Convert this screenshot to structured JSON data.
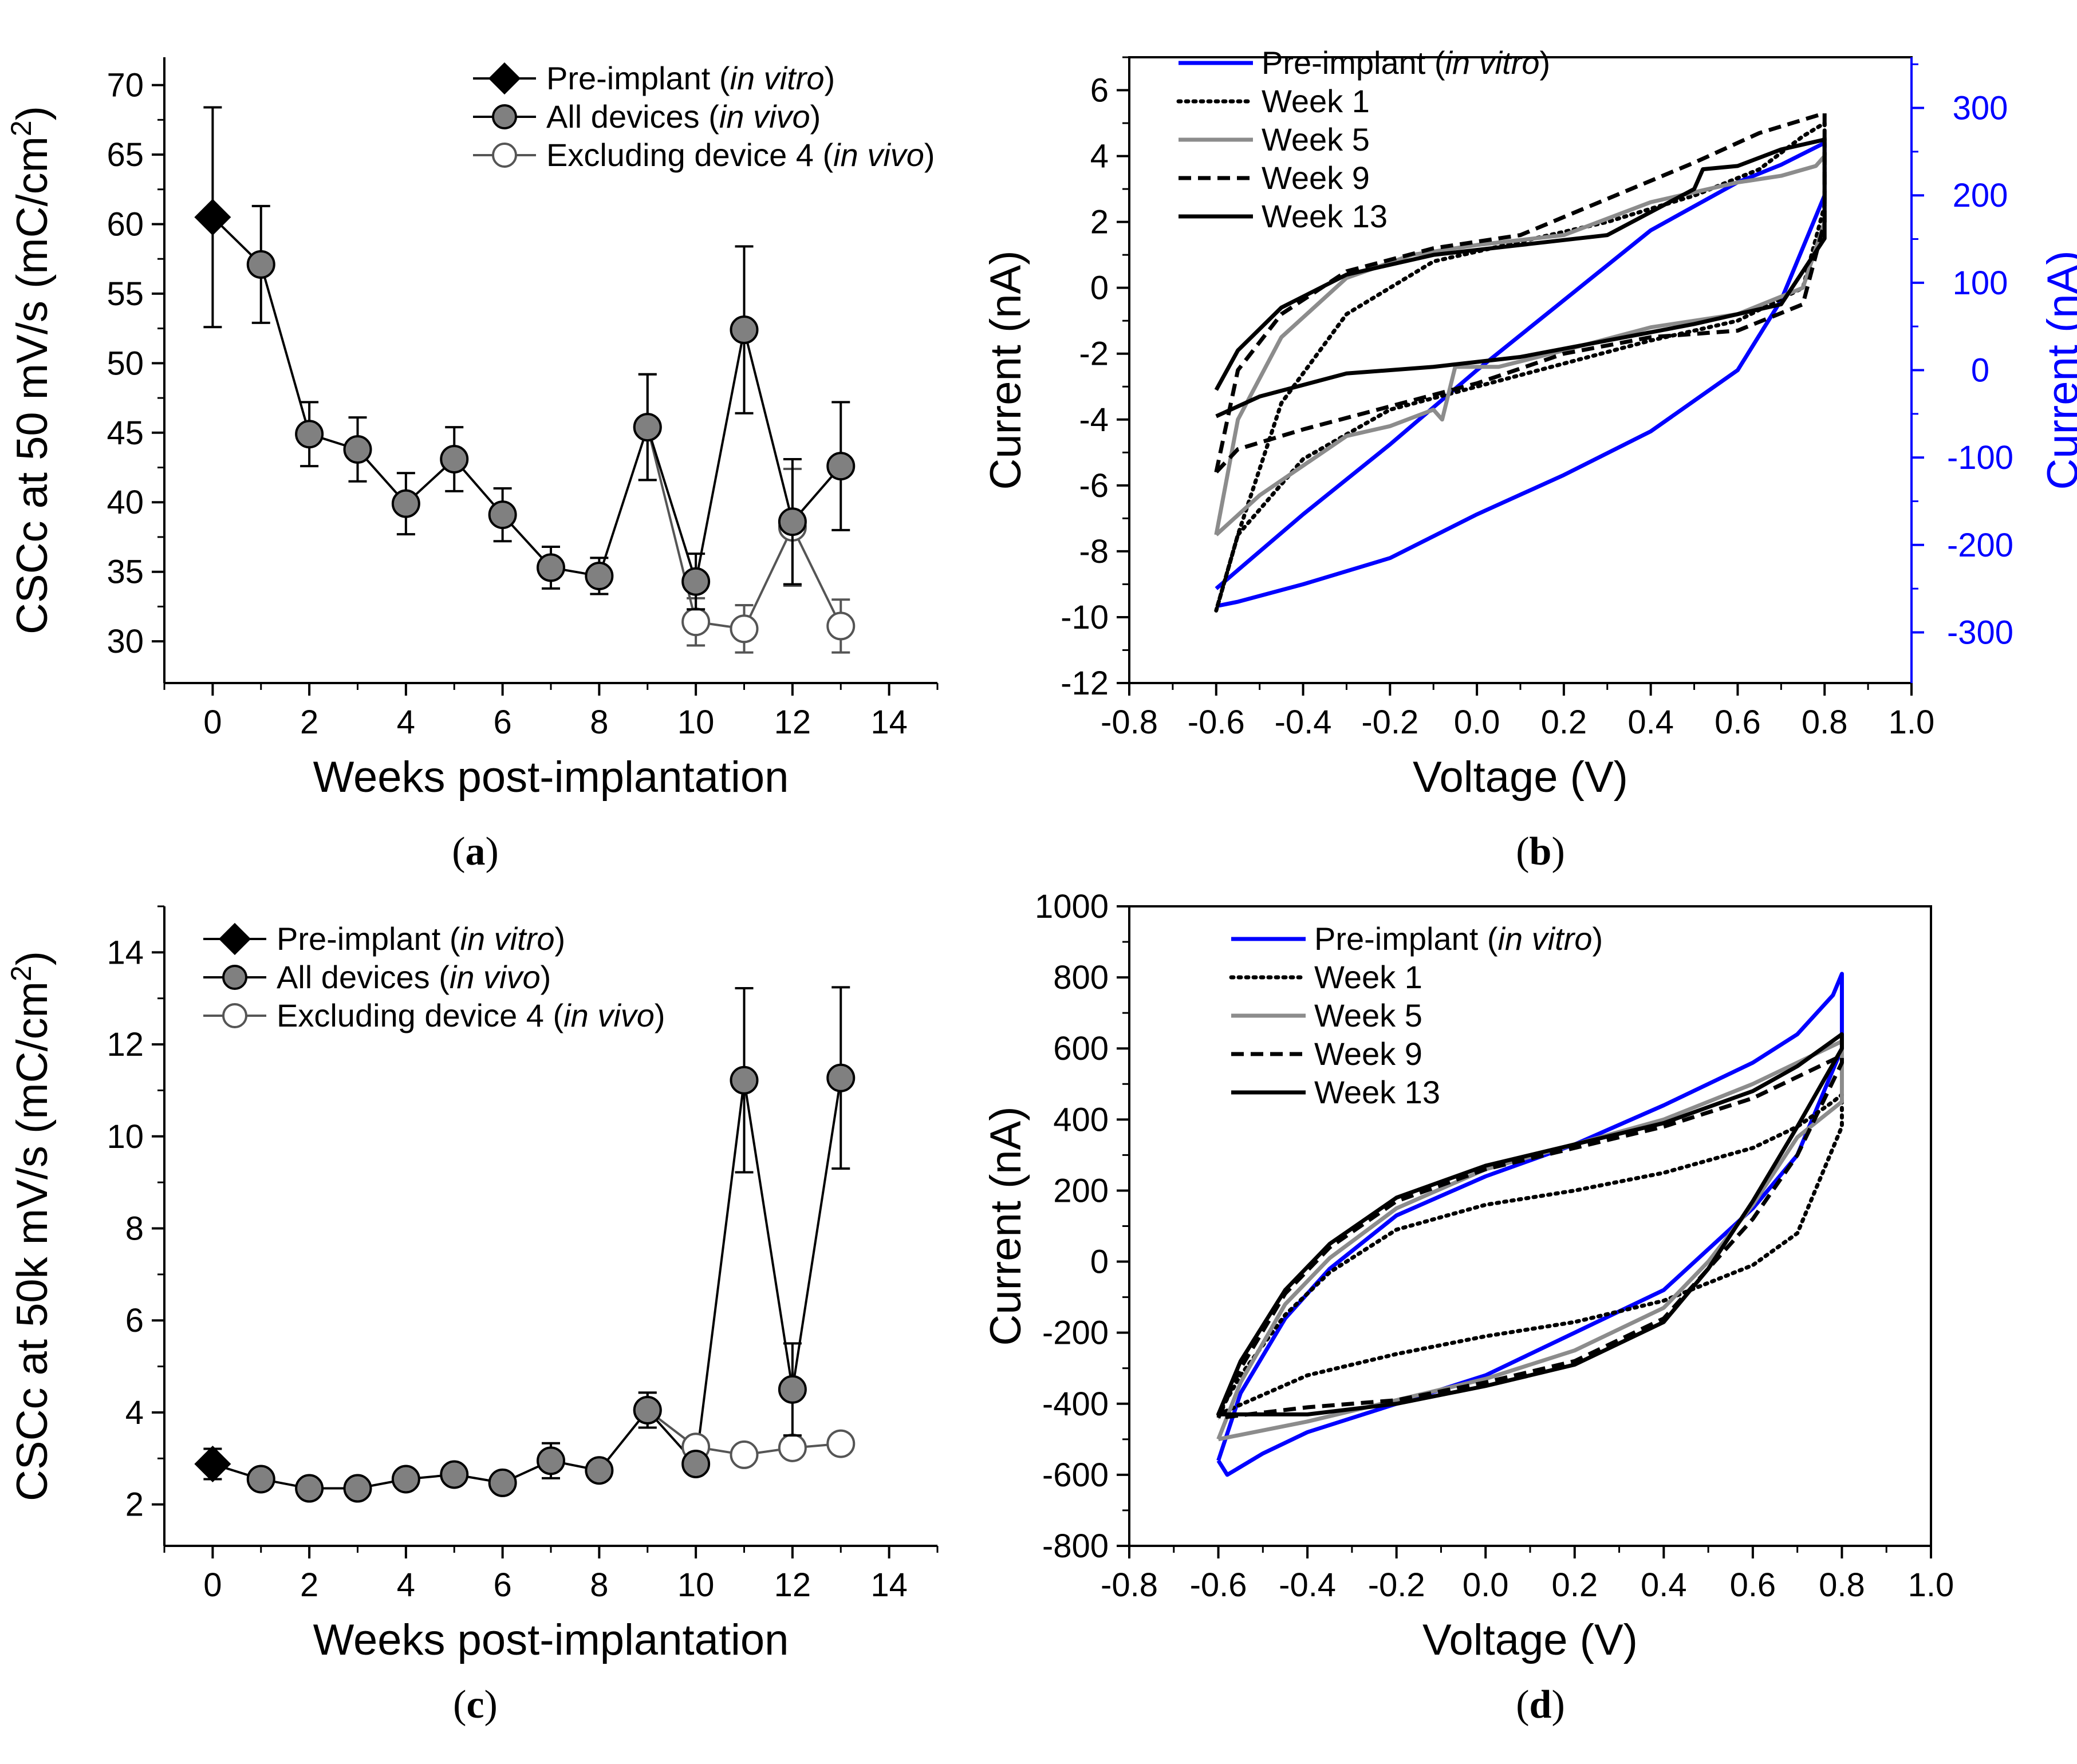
{
  "chart_data": [
    {
      "panel": "(a)",
      "type": "scatter",
      "xlabel": "Weeks post-implantation",
      "ylabel": "CSCc at 50 mV/s (mC/cm²)",
      "ylabel_base": "CSCc at 50 mV/s (mC/cm",
      "ylabel_sup": "2",
      "ylabel_end": ")",
      "xlim": [
        -1,
        15
      ],
      "ylim": [
        27,
        72
      ],
      "xticks": [
        0,
        2,
        4,
        6,
        8,
        10,
        12,
        14
      ],
      "yticks": [
        30,
        35,
        40,
        45,
        50,
        55,
        60,
        65,
        70
      ],
      "legend_position": "top-right",
      "series": [
        {
          "name": "Pre-implant",
          "name_qualifier": "(in vitro)",
          "marker": "diamond",
          "color": "#000000",
          "x": [
            0
          ],
          "y": [
            60.5
          ],
          "err": [
            7.9
          ]
        },
        {
          "name": "All devices",
          "name_qualifier": "(in vivo)",
          "marker": "circle-filled",
          "color": "#000000",
          "x": [
            1,
            2,
            3,
            4,
            5,
            6,
            7,
            8,
            9,
            10,
            11,
            12,
            13
          ],
          "y": [
            57.1,
            44.9,
            43.8,
            39.9,
            43.1,
            39.1,
            35.3,
            34.7,
            45.4,
            34.3,
            52.4,
            38.6,
            42.6
          ],
          "err": [
            4.2,
            2.3,
            2.3,
            2.2,
            2.3,
            1.9,
            1.5,
            1.3,
            3.8,
            2.0,
            6.0,
            4.5,
            4.6
          ]
        },
        {
          "name": "Excluding device 4",
          "name_qualifier": "(in vivo)",
          "marker": "circle-open",
          "color": "#555555",
          "x": [
            9,
            10,
            11,
            12,
            13
          ],
          "y": [
            45.4,
            31.4,
            30.9,
            38.2,
            31.1
          ],
          "err": [
            3.8,
            1.7,
            1.7,
            4.2,
            1.9
          ]
        }
      ]
    },
    {
      "panel": "(b)",
      "type": "line",
      "xlabel": "Voltage (V)",
      "ylabel": "Current (nA)",
      "ylabel_right": "Current (nA)",
      "xlim": [
        -0.8,
        1.0
      ],
      "ylim": [
        -12,
        7
      ],
      "ylim_right": [
        -358,
        358
      ],
      "xticks": [
        -0.8,
        -0.6,
        -0.4,
        -0.2,
        0.0,
        0.2,
        0.4,
        0.6,
        0.8,
        1.0
      ],
      "yticks": [
        -12,
        -10,
        -8,
        -6,
        -4,
        -2,
        0,
        2,
        4,
        6
      ],
      "yticks_right": [
        -300,
        -200,
        -100,
        0,
        100,
        200,
        300
      ],
      "right_axis_color": "#0000ff",
      "legend_position": "top-left",
      "series": [
        {
          "name": "Pre-implant",
          "name_qualifier": "(in vitro)",
          "axis": "right",
          "color": "#0000ff",
          "style": "solid",
          "x": [
            -0.6,
            -0.4,
            -0.2,
            0.0,
            0.2,
            0.4,
            0.6,
            0.7,
            0.8,
            0.8,
            0.7,
            0.6,
            0.4,
            0.2,
            0.0,
            -0.2,
            -0.4,
            -0.55,
            -0.6
          ],
          "y": [
            -250,
            -165,
            -85,
            0,
            80,
            160,
            215,
            235,
            260,
            200,
            80,
            0,
            -70,
            -120,
            -165,
            -215,
            -245,
            -265,
            -270
          ]
        },
        {
          "name": "Week 1",
          "axis": "left",
          "color": "#000000",
          "style": "dotted",
          "x": [
            -0.6,
            -0.55,
            -0.45,
            -0.3,
            -0.1,
            0.1,
            0.3,
            0.5,
            0.65,
            0.75,
            0.8,
            0.8,
            0.75,
            0.6,
            0.4,
            0.2,
            0.0,
            -0.2,
            -0.4,
            -0.55,
            -0.6
          ],
          "y": [
            -9.8,
            -7.5,
            -3.5,
            -0.8,
            0.8,
            1.4,
            2.0,
            2.8,
            3.6,
            4.6,
            5.0,
            2.5,
            0.0,
            -1.0,
            -1.6,
            -2.3,
            -3.0,
            -3.7,
            -5.2,
            -7.5,
            -9.8
          ]
        },
        {
          "name": "Week 5",
          "axis": "left",
          "color": "#8c8c8c",
          "style": "solid",
          "x": [
            -0.6,
            -0.55,
            -0.45,
            -0.3,
            -0.15,
            -0.1,
            0.0,
            0.2,
            0.4,
            0.6,
            0.7,
            0.78,
            0.8,
            0.8,
            0.75,
            0.6,
            0.4,
            0.2,
            0.05,
            -0.05,
            -0.08,
            -0.1,
            -0.2,
            -0.3,
            -0.4,
            -0.5,
            -0.6
          ],
          "y": [
            -7.5,
            -4.0,
            -1.5,
            0.3,
            1.0,
            1.1,
            1.3,
            1.6,
            2.6,
            3.2,
            3.4,
            3.7,
            4.0,
            2.0,
            0.0,
            -0.8,
            -1.2,
            -1.9,
            -2.4,
            -2.4,
            -4.0,
            -3.7,
            -4.2,
            -4.5,
            -5.4,
            -6.3,
            -7.5
          ]
        },
        {
          "name": "Week 9",
          "axis": "left",
          "color": "#000000",
          "style": "dashed",
          "x": [
            -0.6,
            -0.55,
            -0.45,
            -0.3,
            -0.1,
            0.1,
            0.3,
            0.5,
            0.65,
            0.75,
            0.8,
            0.8,
            0.75,
            0.6,
            0.4,
            0.2,
            0.0,
            -0.2,
            -0.4,
            -0.55,
            -0.6
          ],
          "y": [
            -5.6,
            -2.5,
            -0.8,
            0.5,
            1.2,
            1.6,
            2.7,
            3.8,
            4.7,
            5.1,
            5.3,
            2.0,
            -0.5,
            -1.3,
            -1.5,
            -2.0,
            -2.9,
            -3.6,
            -4.3,
            -4.9,
            -5.6
          ]
        },
        {
          "name": "Week 13",
          "axis": "left",
          "color": "#000000",
          "style": "solid",
          "x": [
            -0.6,
            -0.55,
            -0.45,
            -0.3,
            -0.1,
            0.1,
            0.3,
            0.5,
            0.52,
            0.6,
            0.7,
            0.8,
            0.8,
            0.7,
            0.5,
            0.3,
            0.1,
            -0.1,
            -0.3,
            -0.5,
            -0.6
          ],
          "y": [
            -3.1,
            -1.9,
            -0.6,
            0.4,
            1.0,
            1.3,
            1.6,
            3.0,
            3.6,
            3.7,
            4.2,
            4.5,
            1.5,
            -0.5,
            -1.1,
            -1.6,
            -2.1,
            -2.4,
            -2.6,
            -3.3,
            -3.9
          ]
        }
      ]
    },
    {
      "panel": "(c)",
      "type": "scatter",
      "xlabel": "Weeks post-implantation",
      "ylabel": "CSCc at 50k mV/s (mC/cm²)",
      "ylabel_base": "CSCc at 50k mV/s (mC/cm",
      "ylabel_sup": "2",
      "ylabel_end": ")",
      "xlim": [
        -1,
        15
      ],
      "ylim": [
        1.1,
        15
      ],
      "xticks": [
        0,
        2,
        4,
        6,
        8,
        10,
        12,
        14
      ],
      "yticks": [
        2,
        4,
        6,
        8,
        10,
        12,
        14
      ],
      "legend_position": "top-left",
      "series": [
        {
          "name": "Pre-implant",
          "name_qualifier": "(in vitro)",
          "marker": "diamond",
          "color": "#000000",
          "x": [
            0
          ],
          "y": [
            2.88
          ],
          "err": [
            0.33
          ]
        },
        {
          "name": "All devices",
          "name_qualifier": "(in vivo)",
          "marker": "circle-filled",
          "color": "#000000",
          "x": [
            1,
            2,
            3,
            4,
            5,
            6,
            7,
            8,
            9,
            10,
            11,
            12,
            13
          ],
          "y": [
            2.55,
            2.35,
            2.35,
            2.55,
            2.65,
            2.47,
            2.95,
            2.74,
            4.05,
            2.88,
            11.22,
            4.5,
            11.27
          ],
          "err": [
            0.1,
            0.08,
            0.08,
            0.1,
            0.1,
            0.1,
            0.38,
            0.1,
            0.38,
            0.15,
            2.0,
            1.0,
            1.97
          ]
        },
        {
          "name": "Excluding device 4",
          "name_qualifier": "(in vivo)",
          "marker": "circle-open",
          "color": "#555555",
          "x": [
            9,
            10,
            11,
            12,
            13
          ],
          "y": [
            4.05,
            3.25,
            3.08,
            3.23,
            3.32
          ],
          "err": [
            0.38,
            0.15,
            0.2,
            0.2,
            0.22
          ]
        }
      ]
    },
    {
      "panel": "(d)",
      "type": "line",
      "xlabel": "Voltage (V)",
      "ylabel": "Current (nA)",
      "xlim": [
        -0.8,
        1.0
      ],
      "ylim": [
        -800,
        1000
      ],
      "xticks": [
        -0.8,
        -0.6,
        -0.4,
        -0.2,
        0.0,
        0.2,
        0.4,
        0.6,
        0.8,
        1.0
      ],
      "yticks": [
        -800,
        -600,
        -400,
        -200,
        0,
        200,
        400,
        600,
        800,
        1000
      ],
      "legend_position": "top-left",
      "series": [
        {
          "name": "Pre-implant",
          "name_qualifier": "(in vitro)",
          "color": "#0000ff",
          "style": "solid",
          "x": [
            -0.6,
            -0.55,
            -0.45,
            -0.35,
            -0.2,
            0.0,
            0.2,
            0.4,
            0.6,
            0.7,
            0.78,
            0.8,
            0.8,
            0.7,
            0.6,
            0.4,
            0.2,
            0.0,
            -0.2,
            -0.4,
            -0.5,
            -0.58,
            -0.6
          ],
          "y": [
            -560,
            -370,
            -160,
            -20,
            130,
            240,
            330,
            440,
            560,
            640,
            750,
            810,
            600,
            300,
            150,
            -80,
            -200,
            -320,
            -400,
            -480,
            -540,
            -600,
            -560
          ]
        },
        {
          "name": "Week 1",
          "color": "#000000",
          "style": "dotted",
          "x": [
            -0.6,
            -0.55,
            -0.45,
            -0.35,
            -0.2,
            0.0,
            0.2,
            0.4,
            0.6,
            0.7,
            0.78,
            0.8,
            0.8,
            0.7,
            0.6,
            0.4,
            0.2,
            0.0,
            -0.2,
            -0.4,
            -0.6
          ],
          "y": [
            -430,
            -320,
            -150,
            -30,
            90,
            160,
            200,
            250,
            320,
            380,
            450,
            470,
            380,
            80,
            -10,
            -110,
            -170,
            -210,
            -260,
            -320,
            -430
          ]
        },
        {
          "name": "Week 5",
          "color": "#8c8c8c",
          "style": "solid",
          "x": [
            -0.6,
            -0.55,
            -0.45,
            -0.35,
            -0.2,
            0.0,
            0.2,
            0.4,
            0.6,
            0.7,
            0.8,
            0.8,
            0.7,
            0.6,
            0.5,
            0.4,
            0.2,
            0.0,
            -0.2,
            -0.4,
            -0.6
          ],
          "y": [
            -500,
            -340,
            -120,
            10,
            150,
            260,
            330,
            400,
            500,
            560,
            620,
            450,
            350,
            160,
            0,
            -130,
            -250,
            -330,
            -390,
            -450,
            -500
          ]
        },
        {
          "name": "Week 9",
          "color": "#000000",
          "style": "dashed",
          "x": [
            -0.6,
            -0.55,
            -0.45,
            -0.35,
            -0.2,
            0.0,
            0.2,
            0.4,
            0.6,
            0.7,
            0.8,
            0.8,
            0.7,
            0.6,
            0.4,
            0.2,
            0.0,
            -0.2,
            -0.4,
            -0.6
          ],
          "y": [
            -440,
            -300,
            -90,
            40,
            170,
            260,
            320,
            380,
            460,
            520,
            580,
            560,
            300,
            120,
            -160,
            -280,
            -340,
            -390,
            -410,
            -440
          ]
        },
        {
          "name": "Week 13",
          "color": "#000000",
          "style": "solid",
          "x": [
            -0.6,
            -0.55,
            -0.45,
            -0.35,
            -0.2,
            0.0,
            0.2,
            0.4,
            0.6,
            0.7,
            0.8,
            0.8,
            0.7,
            0.6,
            0.5,
            0.4,
            0.2,
            0.0,
            -0.2,
            -0.4,
            -0.6
          ],
          "y": [
            -430,
            -280,
            -80,
            50,
            180,
            270,
            330,
            390,
            480,
            550,
            640,
            600,
            380,
            170,
            -20,
            -170,
            -290,
            -350,
            -400,
            -430,
            -430
          ]
        }
      ]
    }
  ]
}
